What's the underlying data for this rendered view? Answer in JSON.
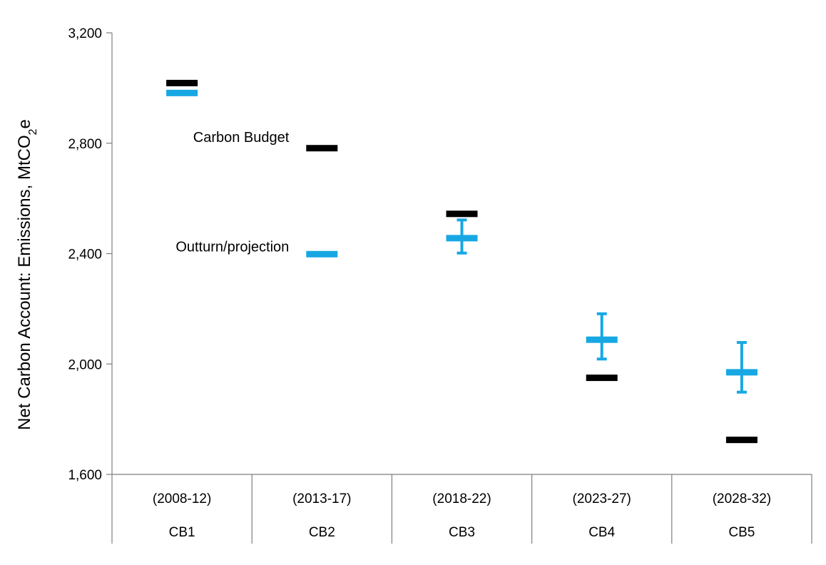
{
  "chart_data": {
    "type": "scatter",
    "ylabel": "Net Carbon Account: Emissions, MtCO",
    "ylabel_subscript": "2",
    "ylabel_suffix": "e",
    "ylim": [
      1600,
      3200
    ],
    "yticks": [
      1600,
      2000,
      2400,
      2800,
      3200
    ],
    "ytick_labels": [
      "1,600",
      "2,000",
      "2,400",
      "2,800",
      "3,200"
    ],
    "categories": [
      {
        "period": "(2008-12)",
        "name": "CB1"
      },
      {
        "period": "(2013-17)",
        "name": "CB2"
      },
      {
        "period": "(2018-22)",
        "name": "CB3"
      },
      {
        "period": "(2023-27)",
        "name": "CB4"
      },
      {
        "period": "(2028-32)",
        "name": "CB5"
      }
    ],
    "series": [
      {
        "name": "Carbon Budget",
        "color": "#000000",
        "values": [
          3018,
          2782,
          2544,
          1950,
          1725
        ]
      },
      {
        "name": "Outturn/projection",
        "color": "#17a8e3",
        "values": [
          2982,
          2398,
          2456,
          2088,
          1970
        ],
        "error_low": [
          null,
          null,
          2402,
          2018,
          1898
        ],
        "error_high": [
          null,
          null,
          2522,
          2182,
          2078
        ]
      }
    ],
    "annotations": [
      {
        "text": "Carbon Budget",
        "category_index": 1,
        "y": 2800
      },
      {
        "text": "Outturn/projection",
        "category_index": 1,
        "y": 2402
      }
    ],
    "grid": false,
    "legend": "none"
  }
}
